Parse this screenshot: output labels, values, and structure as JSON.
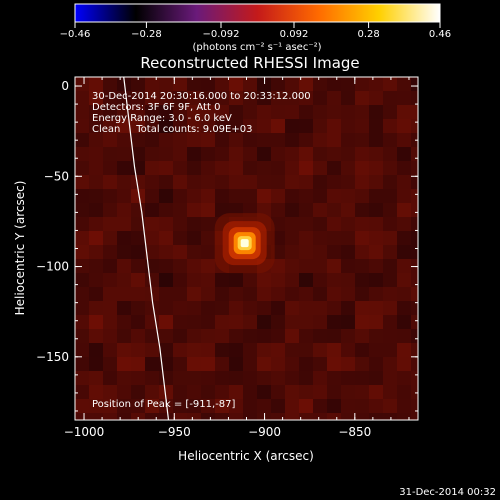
{
  "chart_data": {
    "type": "heatmap",
    "title": "Reconstructed RHESSI Image",
    "xlabel": "Heliocentric X (arcsec)",
    "ylabel": "Heliocentric Y (arcsec)",
    "xlim": [
      -1005,
      -815
    ],
    "ylim": [
      -185,
      5
    ],
    "xticks": [
      -1000,
      -950,
      -900,
      -850
    ],
    "yticks": [
      0,
      -50,
      -100,
      -150
    ],
    "xtick_labels": [
      "−1000",
      "−950",
      "−900",
      "−850"
    ],
    "ytick_labels": [
      "0",
      "−50",
      "−100",
      "−150"
    ],
    "colorbar": {
      "min": -0.46,
      "max": 0.46,
      "ticks": [
        -0.46,
        -0.28,
        -0.092,
        0.092,
        0.28,
        0.46
      ],
      "tick_labels": [
        "−0.46",
        "−0.28",
        "−0.092",
        "0.092",
        "0.28",
        "0.46"
      ],
      "unit_label": "(photons cm⁻² s⁻¹ asec⁻²)",
      "stops": [
        "#0000ff",
        "#000000",
        "#6a1a7a",
        "#c41a1a",
        "#ff6a00",
        "#ffd000",
        "#ffffff"
      ]
    },
    "source": {
      "x": -911,
      "y": -87,
      "peak": 0.46
    },
    "limb": [
      [
        -978,
        5
      ],
      [
        -975,
        -20
      ],
      [
        -972,
        -45
      ],
      [
        -968,
        -70
      ],
      [
        -965,
        -95
      ],
      [
        -962,
        -120
      ],
      [
        -958,
        -145
      ],
      [
        -955,
        -170
      ],
      [
        -952,
        -195
      ]
    ],
    "annotations": [
      "30-Dec-2014 20:30:16.000 to 20:33:12.000",
      "Detectors: 3F 6F 9F, Att 0",
      "Energy Range: 3.0 - 6.0 keV",
      "Clean     Total counts: 9.09E+03"
    ],
    "peak_label": "Position of Peak = [-911,-87]",
    "footer_date": "31-Dec-2014 00:32"
  }
}
